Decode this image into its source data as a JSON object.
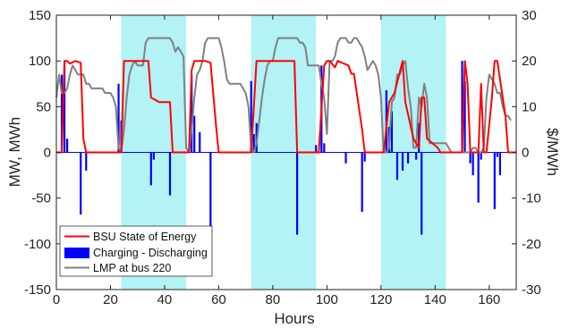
{
  "chart_data": {
    "type": "line",
    "title": "",
    "xlabel": "Hours",
    "ylabel_left": "MW, MWh",
    "ylabel_right": "$/MWh",
    "xlim": [
      0,
      170
    ],
    "ylim_left": [
      -150,
      150
    ],
    "ylim_right": [
      -30,
      30
    ],
    "x_ticks": [
      "0",
      "20",
      "40",
      "60",
      "80",
      "100",
      "120",
      "140",
      "160"
    ],
    "y_left_ticks": [
      "-150",
      "-100",
      "-50",
      "0",
      "50",
      "100",
      "150"
    ],
    "y_right_ticks": [
      "-30",
      "-20",
      "-10",
      "0",
      "10",
      "20",
      "30"
    ],
    "grid": false,
    "legend_position": "bottom-left",
    "shaded_periods": [
      [
        24,
        48
      ],
      [
        72,
        96
      ],
      [
        120,
        144
      ]
    ],
    "colors": {
      "state_of_energy": "#ff0000",
      "charging": "#0000ff",
      "lmp": "#808080",
      "shade": "#b3f2f5",
      "axis": "#222222"
    },
    "series": [
      {
        "name": "BSU State of Energy",
        "kind": "line",
        "axis": "left",
        "x": [
          0,
          2,
          3,
          4,
          5,
          7,
          9,
          10,
          11,
          24,
          25,
          34,
          35,
          38,
          42,
          43,
          48,
          49,
          50,
          51,
          55,
          57,
          59,
          60,
          72,
          73,
          74,
          84,
          85,
          88,
          89,
          96,
          97,
          99,
          100,
          101,
          103,
          104,
          108,
          109,
          110,
          113,
          114,
          120,
          121,
          123,
          125,
          128,
          129,
          132,
          134,
          135,
          136,
          137,
          141,
          142,
          144,
          145,
          150,
          151,
          152,
          153,
          156,
          157,
          158,
          159,
          161,
          162,
          163,
          166,
          167,
          170
        ],
        "y": [
          0,
          0,
          100,
          100,
          97,
          100,
          98,
          15,
          0,
          0,
          100,
          100,
          60,
          55,
          55,
          0,
          0,
          0,
          90,
          100,
          100,
          98,
          30,
          0,
          0,
          50,
          100,
          100,
          100,
          100,
          0,
          0,
          0,
          95,
          100,
          100,
          93,
          100,
          95,
          86,
          86,
          25,
          0,
          0,
          0,
          55,
          65,
          100,
          55,
          15,
          5,
          60,
          60,
          15,
          5,
          0,
          0,
          0,
          0,
          100,
          75,
          0,
          0,
          75,
          0,
          0,
          60,
          100,
          100,
          40,
          0,
          0
        ]
      },
      {
        "name": "Charging - Discharging",
        "kind": "bar",
        "axis": "left",
        "x": [
          2,
          3,
          4,
          9,
          11,
          23,
          24,
          35,
          36,
          42,
          50,
          51,
          53,
          57,
          72,
          73,
          74,
          89,
          96,
          98,
          99,
          107,
          113,
          114,
          122,
          123,
          124,
          126,
          128,
          130,
          133,
          134,
          135,
          150,
          151,
          153,
          154,
          156,
          157,
          162,
          163,
          164
        ],
        "values": [
          85,
          100,
          15,
          -68,
          -20,
          75,
          35,
          -36,
          -8,
          -47,
          85,
          40,
          22,
          -90,
          78,
          20,
          32,
          -90,
          8,
          95,
          10,
          -12,
          -65,
          -10,
          68,
          28,
          45,
          -30,
          -20,
          -12,
          -8,
          32,
          -90,
          100,
          78,
          -12,
          -25,
          -55,
          -8,
          -62,
          -5,
          -25
        ]
      },
      {
        "name": "LMP at bus 220",
        "kind": "line",
        "axis": "right",
        "x": [
          0,
          1,
          2,
          3,
          4,
          5,
          6,
          7,
          8,
          9,
          10,
          11,
          12,
          13,
          14,
          15,
          16,
          17,
          18,
          19,
          20,
          21,
          22,
          23,
          24,
          25,
          26,
          27,
          28,
          29,
          30,
          31,
          32,
          33,
          34,
          35,
          36,
          37,
          38,
          39,
          40,
          41,
          42,
          43,
          44,
          45,
          46,
          47,
          48,
          49,
          50,
          51,
          52,
          53,
          54,
          55,
          56,
          57,
          58,
          59,
          60,
          61,
          62,
          63,
          64,
          65,
          66,
          67,
          68,
          69,
          70,
          71,
          72,
          73,
          74,
          75,
          76,
          77,
          78,
          79,
          80,
          81,
          82,
          83,
          84,
          85,
          86,
          87,
          88,
          89,
          90,
          91,
          92,
          93,
          94,
          95,
          96,
          97,
          98,
          99,
          100,
          101,
          102,
          103,
          104,
          105,
          106,
          107,
          108,
          109,
          110,
          111,
          112,
          113,
          114,
          115,
          116,
          117,
          118,
          119,
          120,
          121,
          122,
          123,
          124,
          125,
          126,
          127,
          128,
          129,
          130,
          131,
          132,
          133,
          134,
          135,
          136,
          137,
          138,
          139,
          140,
          141,
          142,
          143,
          144,
          145,
          146,
          147,
          148,
          149,
          150,
          151,
          152,
          153,
          154,
          155,
          156,
          157,
          158,
          159,
          160,
          161,
          162,
          163,
          164,
          165,
          166,
          167,
          168
        ],
        "y": [
          12,
          17,
          13,
          13,
          14,
          17,
          19,
          18,
          17,
          17,
          17,
          15,
          15,
          14,
          14,
          14,
          14,
          14,
          13,
          13,
          13,
          12,
          10,
          1,
          0,
          5,
          12,
          17,
          19,
          20,
          19,
          19,
          19,
          24,
          25,
          25,
          25,
          25,
          25,
          25,
          25,
          25,
          25,
          24,
          22,
          23,
          22,
          21,
          1,
          0,
          5,
          12,
          17,
          18,
          20,
          24,
          25,
          25,
          25,
          25,
          25,
          23,
          20,
          16,
          15,
          15,
          15,
          15,
          15,
          14,
          13,
          10,
          1,
          0,
          2,
          7,
          12,
          16,
          19,
          20,
          20,
          23,
          25,
          25,
          25,
          25,
          25,
          25,
          25,
          25,
          24,
          24,
          23,
          19,
          19,
          19,
          19,
          19,
          15,
          12,
          4,
          20,
          20,
          21,
          24,
          25,
          25,
          25,
          24,
          24,
          25,
          25,
          24,
          23,
          21,
          18,
          19,
          20,
          19,
          17,
          12,
          0,
          0,
          1,
          11,
          12,
          17,
          17,
          19,
          20,
          14,
          10,
          1,
          1,
          12,
          10,
          15,
          12,
          2,
          2,
          2,
          2,
          2,
          2,
          2,
          1,
          0,
          0,
          0,
          0,
          0,
          0,
          0,
          0,
          1,
          1,
          0,
          0,
          1,
          12,
          17,
          16,
          15,
          13,
          13,
          10,
          8,
          8,
          7
        ]
      }
    ]
  }
}
